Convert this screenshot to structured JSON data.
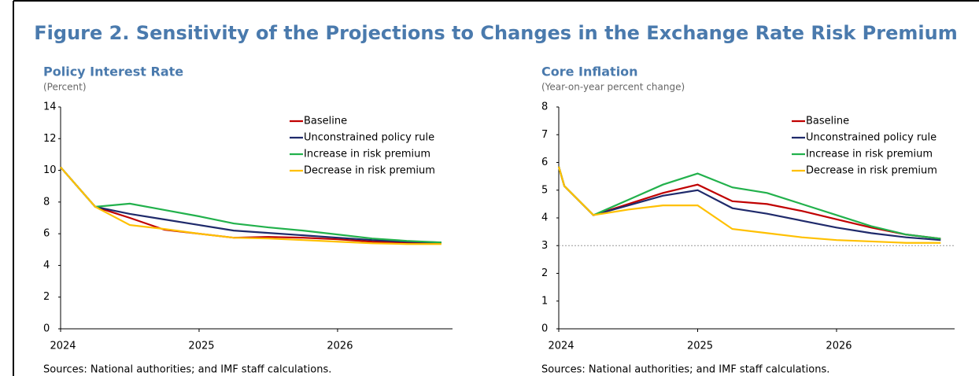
{
  "figure_title": "Figure 2. Sensitivity of the Projections to Changes in the Exchange Rate Risk Premium",
  "chart_data": [
    {
      "type": "line",
      "title": "Policy Interest Rate",
      "subtitle": "(Percent)",
      "x": [
        2024,
        2024.25,
        2024.5,
        2024.75,
        2025,
        2025.25,
        2025.5,
        2025.75,
        2026,
        2026.25,
        2026.5,
        2026.75
      ],
      "series": [
        {
          "name": "Baseline",
          "color": "#c00000",
          "values": [
            10.2,
            7.7,
            7.0,
            6.25,
            6.0,
            5.75,
            5.8,
            5.75,
            5.65,
            5.5,
            5.45,
            5.4
          ]
        },
        {
          "name": "Unconstrained policy rule",
          "color": "#1f2a6b",
          "values": [
            10.2,
            7.7,
            7.25,
            6.9,
            6.55,
            6.2,
            6.05,
            5.9,
            5.75,
            5.6,
            5.5,
            5.45
          ]
        },
        {
          "name": "Increase in risk premium",
          "color": "#22b14c",
          "values": [
            10.2,
            7.7,
            7.9,
            7.5,
            7.1,
            6.65,
            6.4,
            6.2,
            5.95,
            5.7,
            5.55,
            5.45
          ]
        },
        {
          "name": "Decrease in risk premium",
          "color": "#ffc000",
          "values": [
            10.2,
            7.7,
            6.55,
            6.3,
            6.0,
            5.75,
            5.7,
            5.6,
            5.5,
            5.4,
            5.35,
            5.35
          ]
        }
      ],
      "xlim": [
        2024,
        2026.83
      ],
      "xticks": [
        2024,
        2025,
        2026
      ],
      "ylim": [
        0,
        14
      ],
      "yticks": [
        0,
        2,
        4,
        6,
        8,
        10,
        12,
        14
      ],
      "legend": "upper right",
      "note": "Sources: National authorities; and IMF staff calculations."
    },
    {
      "type": "line",
      "title": "Core Inflation",
      "subtitle": "(Year-on-year percent change)",
      "x": [
        2024,
        2024.04,
        2024.25,
        2024.5,
        2024.75,
        2025,
        2025.25,
        2025.5,
        2025.75,
        2026,
        2026.25,
        2026.5,
        2026.75
      ],
      "series": [
        {
          "name": "Baseline",
          "color": "#c00000",
          "values": [
            5.85,
            5.15,
            4.1,
            4.5,
            4.9,
            5.2,
            4.6,
            4.5,
            4.25,
            3.95,
            3.65,
            3.4,
            3.25
          ]
        },
        {
          "name": "Unconstrained policy rule",
          "color": "#1f2a6b",
          "values": [
            5.85,
            5.15,
            4.1,
            4.45,
            4.8,
            5.0,
            4.35,
            4.15,
            3.9,
            3.65,
            3.45,
            3.3,
            3.2
          ]
        },
        {
          "name": "Increase in risk premium",
          "color": "#22b14c",
          "values": [
            5.85,
            5.15,
            4.1,
            4.65,
            5.2,
            5.6,
            5.1,
            4.9,
            4.5,
            4.1,
            3.7,
            3.4,
            3.25
          ]
        },
        {
          "name": "Decrease in risk premium",
          "color": "#ffc000",
          "values": [
            5.85,
            5.15,
            4.1,
            4.3,
            4.45,
            4.45,
            3.6,
            3.45,
            3.3,
            3.2,
            3.15,
            3.1,
            3.1
          ]
        }
      ],
      "xlim": [
        2024,
        2026.85
      ],
      "xticks": [
        2024,
        2025,
        2026
      ],
      "ylim": [
        0,
        8
      ],
      "yticks": [
        0,
        1,
        2,
        3,
        4,
        5,
        6,
        7,
        8
      ],
      "ref_line": 3,
      "legend": "upper right",
      "note": "Sources: National authorities; and IMF staff calculations."
    }
  ]
}
